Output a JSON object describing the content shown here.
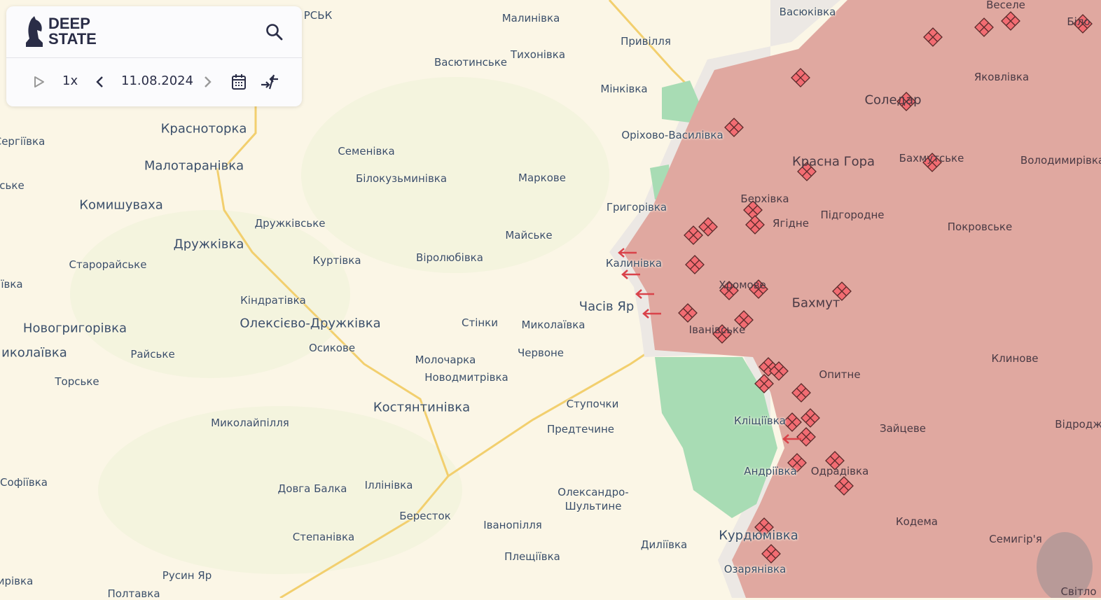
{
  "app": {
    "logo_text_1": "DEEP",
    "logo_text_2": "STATE",
    "speed": "1x",
    "date": "11.08.2024"
  },
  "icons": {
    "logo": "chess-knight-icon",
    "search": "search-icon",
    "play": "play-icon",
    "prev": "chevron-left-icon",
    "next": "chevron-right-icon",
    "calendar": "calendar-icon",
    "collapse": "collapse-arrows-icon"
  },
  "colors": {
    "occupied": "#e0a8a0",
    "gray_zone": "#ece8e4",
    "liberated": "#a8dcb4",
    "marker": "#f26c72",
    "background": "#fbf6e6",
    "road": "#f2cf6e"
  },
  "places": [
    [
      "РСЬК",
      454,
      22,
      0,
      0
    ],
    [
      "Малинівка",
      758,
      26,
      0,
      0
    ],
    [
      "Привілля",
      922,
      59,
      0,
      0
    ],
    [
      "Васюківка",
      1153,
      17,
      0,
      0
    ],
    [
      "Веселе",
      1436,
      7,
      0,
      1
    ],
    [
      "Біло",
      1540,
      31,
      0,
      1
    ],
    [
      "Васютинське",
      672,
      89,
      0,
      0
    ],
    [
      "Тихонівка",
      768,
      78,
      0,
      0
    ],
    [
      "Мінківка",
      891,
      127,
      0,
      0
    ],
    [
      "Яковлівка",
      1430,
      110,
      0,
      1
    ],
    [
      "Соледар",
      1275,
      143,
      1,
      1
    ],
    [
      "Красноторка",
      291,
      184,
      1,
      0
    ],
    [
      "Оріхово-Василівка",
      960,
      193,
      0,
      0
    ],
    [
      "Семенівка",
      523,
      216,
      0,
      0
    ],
    [
      "Малотаранівка",
      277,
      237,
      1,
      0
    ],
    [
      "Красна Гора",
      1190,
      231,
      1,
      1
    ],
    [
      "Бахмутське",
      1330,
      226,
      0,
      1
    ],
    [
      "Володимирівка",
      1517,
      229,
      0,
      1
    ],
    [
      "Білокузьминівка",
      573,
      255,
      0,
      0
    ],
    [
      "Маркове",
      774,
      254,
      0,
      0
    ],
    [
      "Комишуваха",
      173,
      293,
      1,
      0
    ],
    [
      "Григорівка",
      909,
      296,
      0,
      0
    ],
    [
      "Берхівка",
      1092,
      284,
      0,
      1
    ],
    [
      "Підгородне",
      1217,
      307,
      0,
      1
    ],
    [
      "Ягідне",
      1129,
      319,
      0,
      1
    ],
    [
      "Покровське",
      1399,
      324,
      0,
      1
    ],
    [
      "Дружківське",
      414,
      319,
      0,
      0
    ],
    [
      "Майське",
      755,
      336,
      0,
      0
    ],
    [
      "Дружківка",
      298,
      349,
      1,
      0
    ],
    [
      "Старорайське",
      154,
      378,
      0,
      0
    ],
    [
      "Куртівка",
      481,
      372,
      0,
      0
    ],
    [
      "Віролюбівка",
      642,
      368,
      0,
      0
    ],
    [
      "Калинівка",
      905,
      376,
      0,
      0
    ],
    [
      "Кіндратівка",
      390,
      429,
      0,
      0
    ],
    [
      "Часів Яр",
      866,
      438,
      1,
      0
    ],
    [
      "Хромове",
      1060,
      407,
      0,
      1
    ],
    [
      "Бахмут",
      1165,
      433,
      1,
      1
    ],
    [
      "Новогригорівка",
      107,
      469,
      1,
      0
    ],
    [
      "Олексієво-Дружківка",
      443,
      462,
      1,
      0
    ],
    [
      "Стінки",
      685,
      461,
      0,
      0
    ],
    [
      "Миколаївка",
      790,
      464,
      0,
      0
    ],
    [
      "Іванівське",
      1024,
      471,
      0,
      1
    ],
    [
      "иколаївка",
      49,
      504,
      1,
      0
    ],
    [
      "Райське",
      218,
      506,
      0,
      0
    ],
    [
      "Осикове",
      474,
      497,
      0,
      0
    ],
    [
      "Червоне",
      772,
      504,
      0,
      0
    ],
    [
      "Клинове",
      1449,
      512,
      0,
      1
    ],
    [
      "Молочарка",
      636,
      514,
      0,
      0
    ],
    [
      "Опитне",
      1199,
      535,
      0,
      1
    ],
    [
      "Торське",
      110,
      545,
      0,
      0
    ],
    [
      "Новодмитрівка",
      666,
      539,
      0,
      0
    ],
    [
      "Костянтинівка",
      602,
      582,
      1,
      0
    ],
    [
      "Ступочки",
      846,
      577,
      0,
      0
    ],
    [
      "Миколайпілля",
      357,
      604,
      0,
      0
    ],
    [
      "Кліщіївка",
      1085,
      601,
      0,
      0
    ],
    [
      "Зайцеве",
      1289,
      612,
      0,
      1
    ],
    [
      "Відродж",
      1540,
      606,
      0,
      1
    ],
    [
      "Предтечине",
      829,
      613,
      0,
      0
    ],
    [
      "Андріївка",
      1100,
      673,
      0,
      0
    ],
    [
      "Одрадівка",
      1199,
      673,
      0,
      1
    ],
    [
      "Софіївка",
      34,
      689,
      0,
      0
    ],
    [
      "Довга Балка",
      446,
      698,
      0,
      0
    ],
    [
      "Іллінівка",
      555,
      693,
      0,
      0
    ],
    [
      "Олександро-",
      847,
      703,
      0,
      0
    ],
    [
      "Шультине",
      847,
      723,
      0,
      0
    ],
    [
      "Бересток",
      607,
      737,
      0,
      0
    ],
    [
      "Іванопілля",
      732,
      750,
      0,
      0
    ],
    [
      "Кодема",
      1309,
      745,
      0,
      1
    ],
    [
      "Курдюмівка",
      1083,
      765,
      1,
      0
    ],
    [
      "Степанівка",
      462,
      767,
      0,
      0
    ],
    [
      "Диліївка",
      948,
      778,
      0,
      0
    ],
    [
      "Семигір'я",
      1450,
      770,
      0,
      1
    ],
    [
      "Плещіївка",
      760,
      795,
      0,
      0
    ],
    [
      "Озарянівка",
      1078,
      813,
      0,
      0
    ],
    [
      "Русин Яр",
      267,
      822,
      0,
      0
    ],
    [
      "Сергіївка",
      28,
      202,
      0,
      0
    ],
    [
      "ське",
      17,
      265,
      0,
      0
    ],
    [
      "ївка",
      17,
      406,
      0,
      0
    ],
    [
      "ирівка",
      22,
      830,
      0,
      0
    ],
    [
      "Полтавка",
      191,
      848,
      0,
      0
    ],
    [
      "Світло",
      1540,
      845,
      0,
      1
    ]
  ]
}
